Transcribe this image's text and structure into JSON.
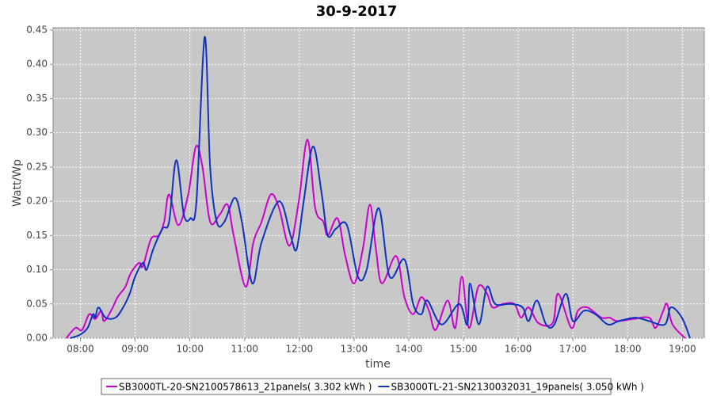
{
  "chart_data": {
    "type": "line",
    "title": "30-9-2017",
    "xlabel": "time",
    "ylabel": "Watt/Wp",
    "xlim": [
      7.5,
      19.4
    ],
    "ylim": [
      0,
      0.45
    ],
    "grid": true,
    "legend": "bottom",
    "xticks": [
      {
        "value": 8,
        "label": "08:00"
      },
      {
        "value": 9,
        "label": "09:00"
      },
      {
        "value": 10,
        "label": "10:00"
      },
      {
        "value": 11,
        "label": "11:00"
      },
      {
        "value": 12,
        "label": "12:00"
      },
      {
        "value": 13,
        "label": "13:00"
      },
      {
        "value": 14,
        "label": "14:00"
      },
      {
        "value": 15,
        "label": "15:00"
      },
      {
        "value": 16,
        "label": "16:00"
      },
      {
        "value": 17,
        "label": "17:00"
      },
      {
        "value": 18,
        "label": "18:00"
      },
      {
        "value": 19,
        "label": "19:00"
      }
    ],
    "yticks": [
      {
        "value": 0,
        "label": "0.00"
      },
      {
        "value": 0.05,
        "label": "0.05"
      },
      {
        "value": 0.1,
        "label": "0.10"
      },
      {
        "value": 0.15,
        "label": "0.15"
      },
      {
        "value": 0.2,
        "label": "0.20"
      },
      {
        "value": 0.25,
        "label": "0.25"
      },
      {
        "value": 0.3,
        "label": "0.30"
      },
      {
        "value": 0.35,
        "label": "0.35"
      },
      {
        "value": 0.4,
        "label": "0.40"
      },
      {
        "value": 0.45,
        "label": "0.45"
      }
    ],
    "series": [
      {
        "name": "SB3000TL-20-SN2100578613_21panels( 3.302 kWh )",
        "color": "#cc00cc",
        "x": [
          7.74,
          7.91,
          8.03,
          8.16,
          8.27,
          8.38,
          8.43,
          8.56,
          8.68,
          8.82,
          8.92,
          9.07,
          9.14,
          9.29,
          9.43,
          9.53,
          9.62,
          9.79,
          9.97,
          10.11,
          10.23,
          10.37,
          10.54,
          10.69,
          10.8,
          11.02,
          11.16,
          11.31,
          11.48,
          11.63,
          11.82,
          11.99,
          12.15,
          12.29,
          12.44,
          12.52,
          12.7,
          12.84,
          13.0,
          13.16,
          13.29,
          13.4,
          13.51,
          13.77,
          13.92,
          14.08,
          14.23,
          14.37,
          14.49,
          14.71,
          14.85,
          14.97,
          15.1,
          15.27,
          15.43,
          15.53,
          15.72,
          15.93,
          16.05,
          16.19,
          16.37,
          16.63,
          16.73,
          16.97,
          17.09,
          17.26,
          17.52,
          17.67,
          17.81,
          18.1,
          18.39,
          18.51,
          18.65,
          18.72,
          18.82,
          19.05
        ],
        "values": [
          0,
          0.015,
          0.012,
          0.035,
          0.028,
          0.04,
          0.025,
          0.04,
          0.06,
          0.075,
          0.095,
          0.11,
          0.105,
          0.145,
          0.15,
          0.17,
          0.21,
          0.165,
          0.21,
          0.28,
          0.25,
          0.17,
          0.18,
          0.195,
          0.15,
          0.075,
          0.14,
          0.17,
          0.21,
          0.19,
          0.135,
          0.2,
          0.29,
          0.19,
          0.17,
          0.15,
          0.175,
          0.12,
          0.08,
          0.13,
          0.195,
          0.13,
          0.08,
          0.12,
          0.06,
          0.035,
          0.06,
          0.04,
          0.012,
          0.055,
          0.015,
          0.09,
          0.015,
          0.075,
          0.065,
          0.045,
          0.05,
          0.05,
          0.03,
          0.045,
          0.022,
          0.022,
          0.065,
          0.015,
          0.04,
          0.045,
          0.03,
          0.03,
          0.025,
          0.028,
          0.03,
          0.015,
          0.04,
          0.05,
          0.02,
          0
        ]
      },
      {
        "name": "SB3000TL-21-SN2130032031_19panels( 3.050 kWh )",
        "color": "#1030c0",
        "x": [
          7.81,
          7.99,
          8.13,
          8.23,
          8.27,
          8.33,
          8.46,
          8.64,
          8.78,
          8.9,
          9.0,
          9.14,
          9.21,
          9.33,
          9.5,
          9.62,
          9.75,
          9.89,
          10.01,
          10.12,
          10.27,
          10.37,
          10.49,
          10.63,
          10.82,
          10.95,
          11.14,
          11.31,
          11.63,
          11.84,
          11.95,
          12.08,
          12.25,
          12.41,
          12.52,
          12.67,
          12.87,
          13.07,
          13.23,
          13.45,
          13.65,
          13.92,
          14.08,
          14.23,
          14.34,
          14.6,
          14.92,
          15.07,
          15.12,
          15.28,
          15.43,
          15.58,
          15.86,
          16.08,
          16.19,
          16.34,
          16.51,
          16.66,
          16.87,
          17.0,
          17.2,
          17.41,
          17.64,
          17.84,
          18.14,
          18.39,
          18.68,
          18.79,
          18.99,
          19.14
        ],
        "values": [
          0,
          0.005,
          0.015,
          0.035,
          0.03,
          0.045,
          0.03,
          0.03,
          0.045,
          0.065,
          0.09,
          0.11,
          0.1,
          0.13,
          0.16,
          0.17,
          0.26,
          0.18,
          0.175,
          0.2,
          0.44,
          0.25,
          0.17,
          0.17,
          0.205,
          0.17,
          0.08,
          0.14,
          0.2,
          0.15,
          0.13,
          0.2,
          0.28,
          0.21,
          0.15,
          0.16,
          0.165,
          0.09,
          0.1,
          0.19,
          0.09,
          0.115,
          0.05,
          0.035,
          0.055,
          0.02,
          0.05,
          0.02,
          0.08,
          0.02,
          0.075,
          0.05,
          0.05,
          0.045,
          0.025,
          0.055,
          0.02,
          0.02,
          0.065,
          0.025,
          0.04,
          0.035,
          0.02,
          0.025,
          0.03,
          0.025,
          0.02,
          0.045,
          0.03,
          0
        ]
      }
    ]
  }
}
